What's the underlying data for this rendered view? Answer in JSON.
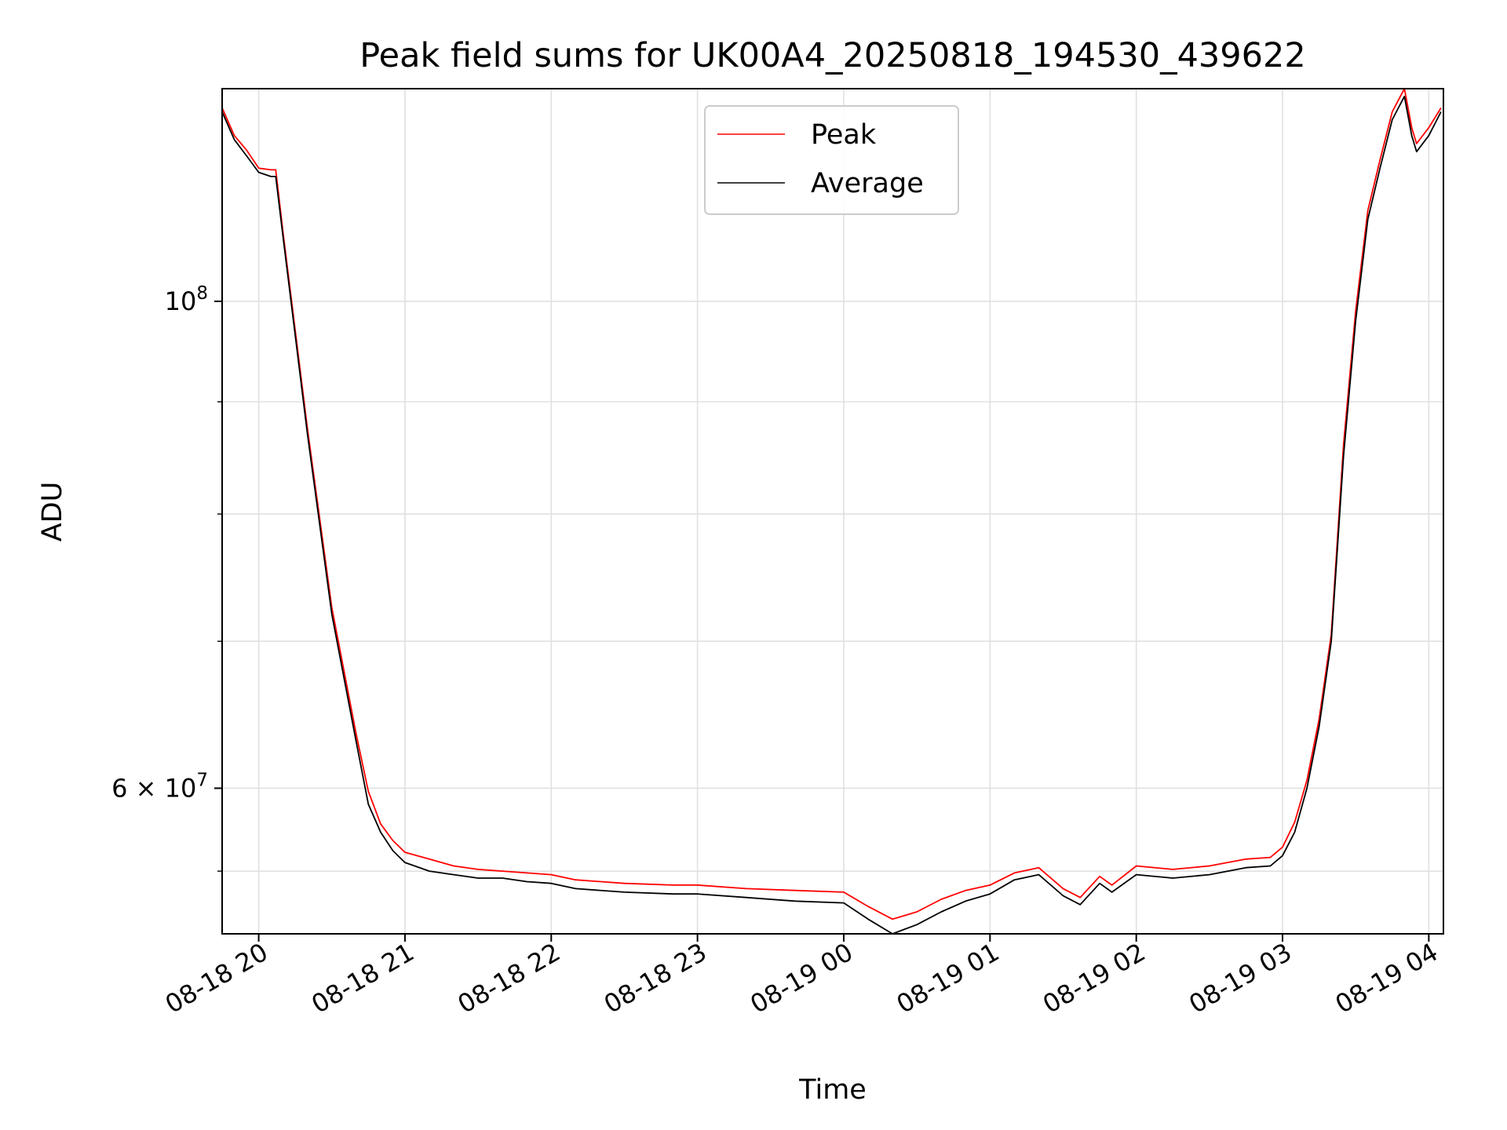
{
  "chart_data": {
    "type": "line",
    "title": "Peak field sums for UK00A4_20250818_194530_439622",
    "xlabel": "Time",
    "ylabel": "ADU",
    "yscale": "log",
    "ylim": [
      51500000,
      125000000
    ],
    "xlim": [
      "2025-08-18 19:45",
      "2025-08-19 04:06"
    ],
    "grid": true,
    "legend_position": "top-center",
    "x_tick_labels": [
      "08-18 20",
      "08-18 21",
      "08-18 22",
      "08-18 23",
      "08-19 00",
      "08-19 01",
      "08-19 02",
      "08-19 03",
      "08-19 04"
    ],
    "y_tick_labels": [
      {
        "value": 100000000,
        "label": "10^8"
      },
      {
        "value": 60000000,
        "label": "6 × 10^7"
      }
    ],
    "colors": {
      "peak": "#ff0000",
      "average": "#000000"
    },
    "series": [
      {
        "name": "Average",
        "x": [
          "2025-08-18 19:45",
          "2025-08-18 19:50",
          "2025-08-18 19:55",
          "2025-08-18 20:00",
          "2025-08-18 20:05",
          "2025-08-18 20:07",
          "2025-08-18 20:10",
          "2025-08-18 20:20",
          "2025-08-18 20:30",
          "2025-08-18 20:40",
          "2025-08-18 20:45",
          "2025-08-18 20:50",
          "2025-08-18 20:55",
          "2025-08-18 21:00",
          "2025-08-18 21:10",
          "2025-08-18 21:20",
          "2025-08-18 21:30",
          "2025-08-18 21:40",
          "2025-08-18 21:50",
          "2025-08-18 22:00",
          "2025-08-18 22:10",
          "2025-08-18 22:30",
          "2025-08-18 22:50",
          "2025-08-18 23:00",
          "2025-08-18 23:20",
          "2025-08-18 23:40",
          "2025-08-19 00:00",
          "2025-08-19 00:10",
          "2025-08-19 00:20",
          "2025-08-19 00:30",
          "2025-08-19 00:40",
          "2025-08-19 00:50",
          "2025-08-19 01:00",
          "2025-08-19 01:10",
          "2025-08-19 01:20",
          "2025-08-19 01:30",
          "2025-08-19 01:37",
          "2025-08-19 01:45",
          "2025-08-19 01:50",
          "2025-08-19 02:00",
          "2025-08-19 02:15",
          "2025-08-19 02:30",
          "2025-08-19 02:45",
          "2025-08-19 02:55",
          "2025-08-19 03:00",
          "2025-08-19 03:05",
          "2025-08-19 03:10",
          "2025-08-19 03:15",
          "2025-08-19 03:20",
          "2025-08-19 03:25",
          "2025-08-19 03:30",
          "2025-08-19 03:35",
          "2025-08-19 03:40",
          "2025-08-19 03:45",
          "2025-08-19 03:50",
          "2025-08-19 03:53",
          "2025-08-19 03:55",
          "2025-08-19 04:00",
          "2025-08-19 04:05"
        ],
        "values": [
          122000000,
          118500000,
          116500000,
          114500000,
          114000000,
          114000000,
          107000000,
          87000000,
          72000000,
          63000000,
          59000000,
          57300000,
          56200000,
          55500000,
          55000000,
          54800000,
          54600000,
          54600000,
          54400000,
          54300000,
          54000000,
          53800000,
          53700000,
          53700000,
          53500000,
          53300000,
          53200000,
          52300000,
          51500000,
          52000000,
          52700000,
          53300000,
          53700000,
          54500000,
          54800000,
          53600000,
          53100000,
          54300000,
          53800000,
          54800000,
          54600000,
          54800000,
          55200000,
          55300000,
          55900000,
          57300000,
          60000000,
          64000000,
          70000000,
          85000000,
          98000000,
          109000000,
          115000000,
          121000000,
          124000000,
          119000000,
          117000000,
          119000000,
          122000000
        ]
      },
      {
        "name": "Peak",
        "x": [
          "2025-08-18 19:45",
          "2025-08-18 19:50",
          "2025-08-18 19:55",
          "2025-08-18 20:00",
          "2025-08-18 20:05",
          "2025-08-18 20:07",
          "2025-08-18 20:10",
          "2025-08-18 20:20",
          "2025-08-18 20:30",
          "2025-08-18 20:40",
          "2025-08-18 20:45",
          "2025-08-18 20:50",
          "2025-08-18 20:55",
          "2025-08-18 21:00",
          "2025-08-18 21:10",
          "2025-08-18 21:20",
          "2025-08-18 21:30",
          "2025-08-18 21:40",
          "2025-08-18 21:50",
          "2025-08-18 22:00",
          "2025-08-18 22:10",
          "2025-08-18 22:30",
          "2025-08-18 22:50",
          "2025-08-18 23:00",
          "2025-08-18 23:20",
          "2025-08-18 23:40",
          "2025-08-19 00:00",
          "2025-08-19 00:10",
          "2025-08-19 00:20",
          "2025-08-19 00:30",
          "2025-08-19 00:40",
          "2025-08-19 00:50",
          "2025-08-19 01:00",
          "2025-08-19 01:10",
          "2025-08-19 01:20",
          "2025-08-19 01:30",
          "2025-08-19 01:37",
          "2025-08-19 01:45",
          "2025-08-19 01:50",
          "2025-08-19 02:00",
          "2025-08-19 02:15",
          "2025-08-19 02:30",
          "2025-08-19 02:45",
          "2025-08-19 02:55",
          "2025-08-19 03:00",
          "2025-08-19 03:05",
          "2025-08-19 03:10",
          "2025-08-19 03:15",
          "2025-08-19 03:20",
          "2025-08-19 03:25",
          "2025-08-19 03:30",
          "2025-08-19 03:35",
          "2025-08-19 03:40",
          "2025-08-19 03:45",
          "2025-08-19 03:50",
          "2025-08-19 03:53",
          "2025-08-19 03:55",
          "2025-08-19 04:00",
          "2025-08-19 04:05"
        ],
        "values": [
          122500000,
          119000000,
          117200000,
          115000000,
          114800000,
          114800000,
          107500000,
          87500000,
          72500000,
          63500000,
          59800000,
          57800000,
          56800000,
          56100000,
          55700000,
          55300000,
          55100000,
          55000000,
          54900000,
          54800000,
          54500000,
          54300000,
          54200000,
          54200000,
          54000000,
          53900000,
          53800000,
          53000000,
          52300000,
          52700000,
          53400000,
          53900000,
          54200000,
          54900000,
          55200000,
          54000000,
          53500000,
          54700000,
          54200000,
          55300000,
          55100000,
          55300000,
          55700000,
          55800000,
          56400000,
          57900000,
          60500000,
          64500000,
          70500000,
          86000000,
          99000000,
          110000000,
          116000000,
          122000000,
          125000000,
          120000000,
          118000000,
          120000000,
          122500000
        ]
      }
    ]
  }
}
